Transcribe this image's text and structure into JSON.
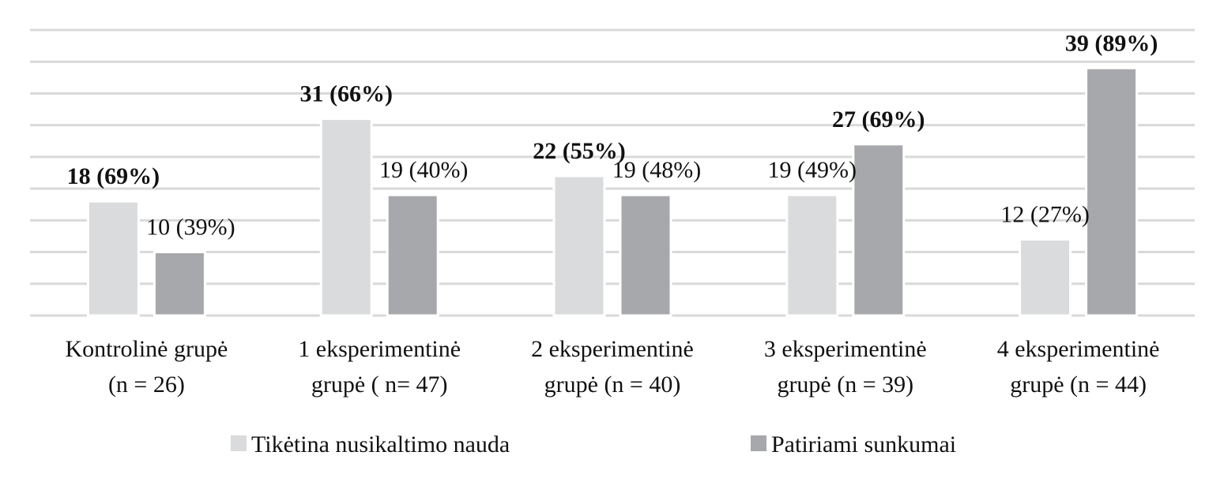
{
  "chart_data": {
    "type": "bar",
    "categories": [
      [
        "Kontrolinė grupė",
        "(n = 26)"
      ],
      [
        "1 eksperimentinė",
        "grupė ( n= 47)"
      ],
      [
        "2 eksperimentinė",
        "grupė (n = 40)"
      ],
      [
        "3 eksperimentinė",
        "grupė (n = 39)"
      ],
      [
        "4 eksperimentinė",
        "grupė (n = 44)"
      ]
    ],
    "series": [
      {
        "name": "Tikėtina nusikaltimo nauda",
        "color": "#dadbdd",
        "values": [
          18,
          31,
          22,
          19,
          12
        ],
        "labels": [
          "18 (69%)",
          "31 (66%)",
          "22 (55%)",
          "19 (49%)",
          "12 (27%)"
        ],
        "bold": [
          true,
          true,
          true,
          false,
          false
        ]
      },
      {
        "name": "Patiriami sunkumai",
        "color": "#a7a8ab",
        "values": [
          10,
          19,
          19,
          27,
          39
        ],
        "labels": [
          "10 (39%)",
          "19 (40%)",
          "19 (48%)",
          "27 (69%)",
          "39 (89%)"
        ],
        "bold": [
          false,
          false,
          false,
          true,
          true
        ]
      }
    ],
    "ylim": [
      0,
      45
    ],
    "grid_step": 5,
    "grid": true,
    "grid_color": "#d9d9d9",
    "y_axis_labels_shown": false,
    "legend_placement": "bottom"
  }
}
